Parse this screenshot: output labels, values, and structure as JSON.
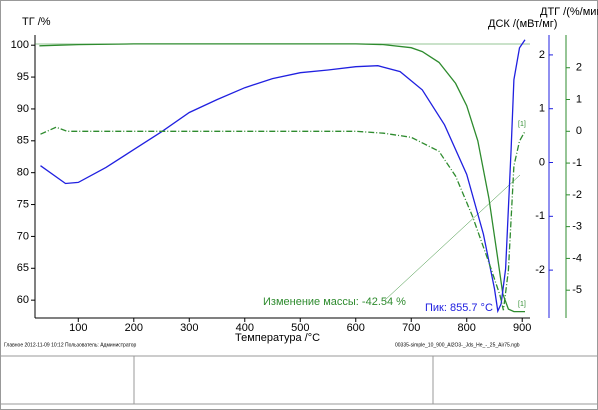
{
  "chart_data": {
    "type": "line",
    "xlabel": "Температура /°C",
    "ylabel": "ТГ /%",
    "y2label": "ДСК /(мВт/мг)",
    "y3label": "ДТГ /(%/мин)",
    "xlim": [
      22,
      914
    ],
    "xticks": [
      100,
      200,
      300,
      400,
      500,
      600,
      700,
      800,
      900
    ],
    "ylim": [
      57.2,
      101.6
    ],
    "yticks": [
      60,
      65,
      70,
      75,
      80,
      85,
      90,
      95,
      100
    ],
    "y2lim": [
      -2.89,
      2.37
    ],
    "y2ticks": [
      -2,
      -1,
      0,
      1,
      2
    ],
    "y3lim": [
      -5.875,
      3.03
    ],
    "y3ticks": [
      -5,
      -4,
      -3,
      -2,
      -1,
      0,
      1,
      2
    ],
    "series": [
      {
        "name": "ТГ",
        "color": "#2e8b2e",
        "axis": "y",
        "style": "solid",
        "x": [
          30,
          100,
          200,
          300,
          400,
          500,
          600,
          650,
          700,
          720,
          750,
          780,
          800,
          820,
          840,
          855,
          865,
          875,
          885,
          905
        ],
        "values": [
          99.9,
          100.1,
          100.2,
          100.2,
          100.2,
          100.2,
          100.2,
          100.1,
          99.6,
          99.0,
          97.3,
          94,
          90.5,
          85,
          76,
          67,
          61,
          58.6,
          58.2,
          58.2
        ]
      },
      {
        "name": "ДСК",
        "color": "#2020e0",
        "axis": "y2",
        "style": "solid",
        "x": [
          32,
          77,
          100,
          150,
          200,
          250,
          300,
          350,
          400,
          450,
          500,
          550,
          600,
          640,
          680,
          720,
          760,
          800,
          830,
          850,
          856,
          862,
          870,
          880,
          885,
          895,
          905
        ],
        "values": [
          -0.06,
          -0.39,
          -0.37,
          -0.09,
          0.24,
          0.57,
          0.93,
          1.17,
          1.39,
          1.56,
          1.67,
          1.72,
          1.78,
          1.8,
          1.69,
          1.35,
          0.7,
          -0.22,
          -1.33,
          -2.35,
          -2.76,
          -2.63,
          -1.98,
          0.24,
          1.54,
          2.13,
          2.28
        ]
      },
      {
        "name": "ДТГ",
        "color": "#2e8b2e",
        "axis": "y3",
        "style": "dashdot",
        "x": [
          32,
          60,
          80,
          100,
          200,
          300,
          400,
          500,
          600,
          650,
          700,
          750,
          780,
          810,
          840,
          860,
          866,
          875,
          885,
          895,
          905
        ],
        "values": [
          -0.09,
          0.13,
          0.0,
          0.0,
          0.0,
          0.0,
          0.0,
          0.0,
          0.0,
          -0.06,
          -0.19,
          -0.63,
          -1.41,
          -2.66,
          -4.13,
          -5.16,
          -5.63,
          -4.38,
          -1.09,
          -0.31,
          0.0
        ]
      }
    ],
    "annotations": [
      {
        "text": "Изменение массы: -42.54 %",
        "color": "#2e8b2e"
      },
      {
        "text": "Пик: 855.7 °C",
        "color": "#2020e0"
      },
      {
        "text": "[1]",
        "color": "#2e8b2e"
      },
      {
        "text": "[1]",
        "color": "#2e8b2e"
      }
    ],
    "footer_left": "Главное   2012-11-09 10:12   Пользователь: Администратор",
    "footer_right": "00335-simple_10_900_Al2O3-_Jds_He_-_25_Air75.ngb"
  }
}
